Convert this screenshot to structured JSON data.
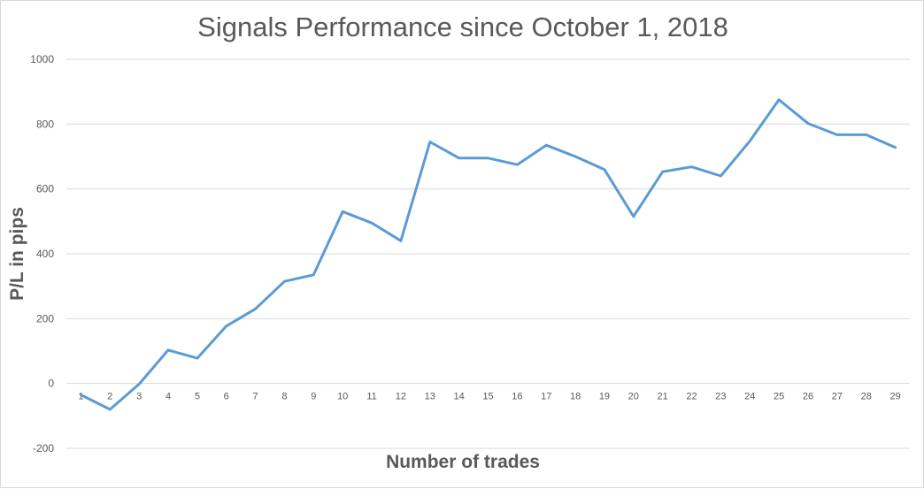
{
  "chart_data": {
    "type": "line",
    "title": "Signals Performance since October 1, 2018",
    "xlabel": "Number of trades",
    "ylabel": "P/L in pips",
    "ylim": [
      -200,
      1000
    ],
    "yticks": [
      -200,
      0,
      200,
      400,
      600,
      800,
      1000
    ],
    "grid": "horizontal",
    "line_color": "#5b9bd5",
    "categories": [
      "1",
      "2",
      "3",
      "4",
      "5",
      "6",
      "7",
      "8",
      "9",
      "10",
      "11",
      "12",
      "13",
      "14",
      "15",
      "16",
      "17",
      "18",
      "19",
      "20",
      "21",
      "22",
      "23",
      "24",
      "25",
      "26",
      "27",
      "28",
      "29"
    ],
    "series": [
      {
        "values": [
          -35,
          -80,
          -2,
          103,
          78,
          177,
          230,
          315,
          335,
          530,
          495,
          440,
          745,
          695,
          695,
          675,
          735,
          700,
          660,
          515,
          653,
          668,
          640,
          748,
          875,
          802,
          767,
          767,
          728
        ]
      }
    ]
  }
}
